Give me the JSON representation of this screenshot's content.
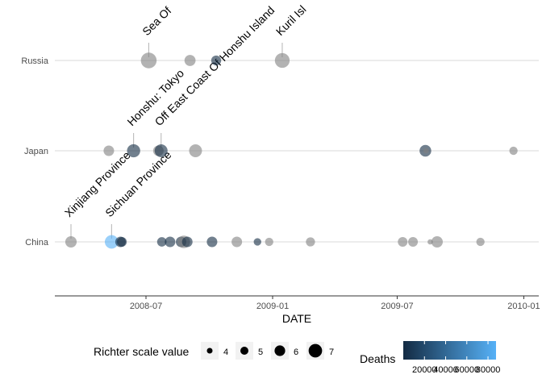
{
  "chart_data": {
    "type": "scatter",
    "xlabel": "DATE",
    "ylabel": "",
    "x_ticks": [
      "2008-07",
      "2009-01",
      "2009-07",
      "2010-01"
    ],
    "xlim": [
      "2008-02-15",
      "2010-01-20"
    ],
    "categories": [
      "China",
      "Japan",
      "Russia"
    ],
    "grid": "horizontal major gridlines at each country",
    "points": [
      {
        "date": "2008-03-14",
        "country": "China",
        "magnitude": 6.3,
        "deaths": 0
      },
      {
        "date": "2008-05-12",
        "country": "China",
        "magnitude": 7.0,
        "deaths": 87587
      },
      {
        "date": "2008-05-25",
        "country": "China",
        "magnitude": 6.0,
        "deaths": 8
      },
      {
        "date": "2008-05-27",
        "country": "China",
        "magnitude": 5.7,
        "deaths": 1
      },
      {
        "date": "2008-07-24",
        "country": "China",
        "magnitude": 5.6,
        "deaths": 1
      },
      {
        "date": "2008-08-05",
        "country": "China",
        "magnitude": 6.0,
        "deaths": 4
      },
      {
        "date": "2008-08-21",
        "country": "China",
        "magnitude": 6.0,
        "deaths": 5
      },
      {
        "date": "2008-08-25",
        "country": "China",
        "magnitude": 6.7,
        "deaths": 0
      },
      {
        "date": "2008-08-30",
        "country": "China",
        "magnitude": 6.0,
        "deaths": 41
      },
      {
        "date": "2008-10-05",
        "country": "China",
        "magnitude": 6.0,
        "deaths": 10
      },
      {
        "date": "2008-11-10",
        "country": "China",
        "magnitude": 6.0,
        "deaths": 0
      },
      {
        "date": "2008-12-10",
        "country": "China",
        "magnitude": 4.9,
        "deaths": 1
      },
      {
        "date": "2008-12-27",
        "country": "China",
        "magnitude": 5.2,
        "deaths": 0
      },
      {
        "date": "2009-02-25",
        "country": "China",
        "magnitude": 5.5,
        "deaths": 0
      },
      {
        "date": "2009-07-09",
        "country": "China",
        "magnitude": 5.7,
        "deaths": 0
      },
      {
        "date": "2009-07-24",
        "country": "China",
        "magnitude": 5.7,
        "deaths": 0
      },
      {
        "date": "2009-08-28",
        "country": "China",
        "magnitude": 6.3,
        "deaths": 0
      },
      {
        "date": "2009-10-30",
        "country": "China",
        "magnitude": 5.2,
        "deaths": 0
      },
      {
        "date": "2008-05-08",
        "country": "Japan",
        "magnitude": 6.0,
        "deaths": 0
      },
      {
        "date": "2008-06-13",
        "country": "Japan",
        "magnitude": 6.9,
        "deaths": 13
      },
      {
        "date": "2008-07-19",
        "country": "Japan",
        "magnitude": 6.0,
        "deaths": 0
      },
      {
        "date": "2008-07-23",
        "country": "Japan",
        "magnitude": 6.8,
        "deaths": 1
      },
      {
        "date": "2008-09-11",
        "country": "Japan",
        "magnitude": 6.8,
        "deaths": 0
      },
      {
        "date": "2009-08-11",
        "country": "Japan",
        "magnitude": 6.4,
        "deaths": 1
      },
      {
        "date": "2009-12-17",
        "country": "Japan",
        "magnitude": 5.2,
        "deaths": 0
      },
      {
        "date": "2008-07-05",
        "country": "Russia",
        "magnitude": 7.7,
        "deaths": 0
      },
      {
        "date": "2008-09-03",
        "country": "Russia",
        "magnitude": 6.2,
        "deaths": 0
      },
      {
        "date": "2008-10-11",
        "country": "Russia",
        "magnitude": 5.8,
        "deaths": 13
      },
      {
        "date": "2009-01-15",
        "country": "Russia",
        "magnitude": 7.4,
        "deaths": 0
      },
      {
        "date": "2009-08-12",
        "country": "Japan",
        "magnitude": 4.0,
        "deaths": 0
      },
      {
        "date": "2009-08-18",
        "country": "China",
        "magnitude": 4.0,
        "deaths": 0
      }
    ],
    "annotations": [
      {
        "text": "Sea Of",
        "date": "2008-07-05",
        "country": "Russia"
      },
      {
        "text": "Kuril Isl",
        "date": "2009-01-15",
        "country": "Russia"
      },
      {
        "text": "Honshu: Tokyo",
        "date": "2008-06-13",
        "country": "Japan"
      },
      {
        "text": "Off East Coast Of Honshu Island",
        "date": "2008-07-23",
        "country": "Japan"
      },
      {
        "text": "Xinjiang Province",
        "date": "2008-03-14",
        "country": "China"
      },
      {
        "text": "Sichuan Province",
        "date": "2008-05-12",
        "country": "China"
      }
    ],
    "legend_size": {
      "title": "Richter scale value",
      "entries": [
        {
          "label": "4",
          "value": 4
        },
        {
          "label": "5",
          "value": 5
        },
        {
          "label": "6",
          "value": 6
        },
        {
          "label": "7",
          "value": 7
        }
      ]
    },
    "legend_color": {
      "title": "Deaths",
      "ticks": [
        {
          "label": "20000",
          "value": 20000
        },
        {
          "label": "40000",
          "value": 40000
        },
        {
          "label": "60000",
          "value": 60000
        },
        {
          "label": "80000",
          "value": 80000
        }
      ],
      "range": [
        0,
        87587
      ],
      "low_color": "#132B43",
      "high_color": "#56B1F7",
      "placement": "bottom"
    },
    "colors": {
      "na_point": "#808080",
      "gridline": "#d9d9d9",
      "axis_line": "#333333"
    }
  }
}
